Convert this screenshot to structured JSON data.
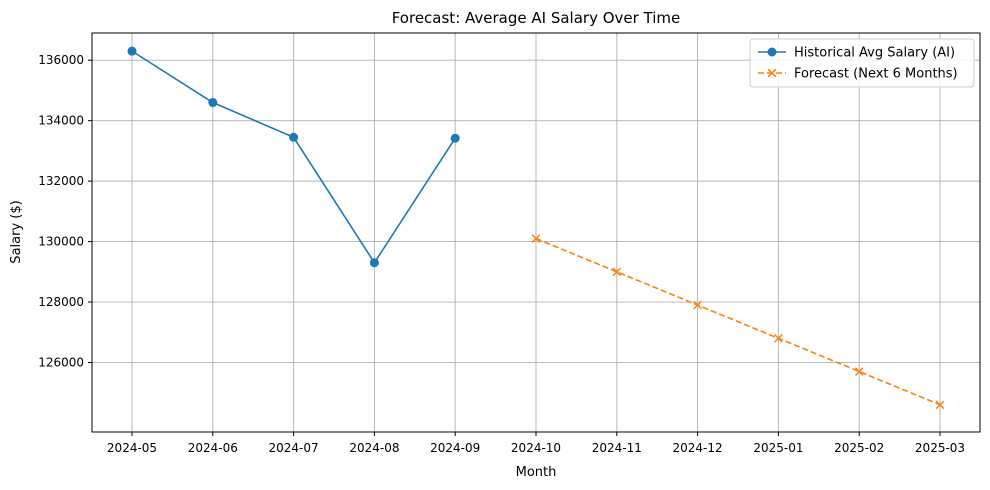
{
  "chart_data": {
    "type": "line",
    "title": "Forecast: Average AI Salary Over Time",
    "xlabel": "Month",
    "ylabel": "Salary ($)",
    "categories": [
      "2024-05",
      "2024-06",
      "2024-07",
      "2024-08",
      "2024-09",
      "2024-10",
      "2024-11",
      "2024-12",
      "2025-01",
      "2025-02",
      "2025-03"
    ],
    "ylim": [
      123700,
      136900
    ],
    "yticks": [
      126000,
      128000,
      130000,
      132000,
      134000,
      136000
    ],
    "grid": true,
    "legend_position": "top-right",
    "series": [
      {
        "name": "Historical Avg Salary (AI)",
        "color": "#1f77b4",
        "marker": "circle",
        "linestyle": "solid",
        "x": [
          "2024-05",
          "2024-06",
          "2024-07",
          "2024-08",
          "2024-09"
        ],
        "values": [
          136300,
          134600,
          133450,
          129300,
          133420
        ]
      },
      {
        "name": "Forecast (Next 6 Months)",
        "color": "#ff7f0e",
        "marker": "x",
        "linestyle": "dashed",
        "x": [
          "2024-10",
          "2024-11",
          "2024-12",
          "2025-01",
          "2025-02",
          "2025-03"
        ],
        "values": [
          130100,
          129000,
          127900,
          126800,
          125700,
          124600
        ]
      }
    ]
  }
}
